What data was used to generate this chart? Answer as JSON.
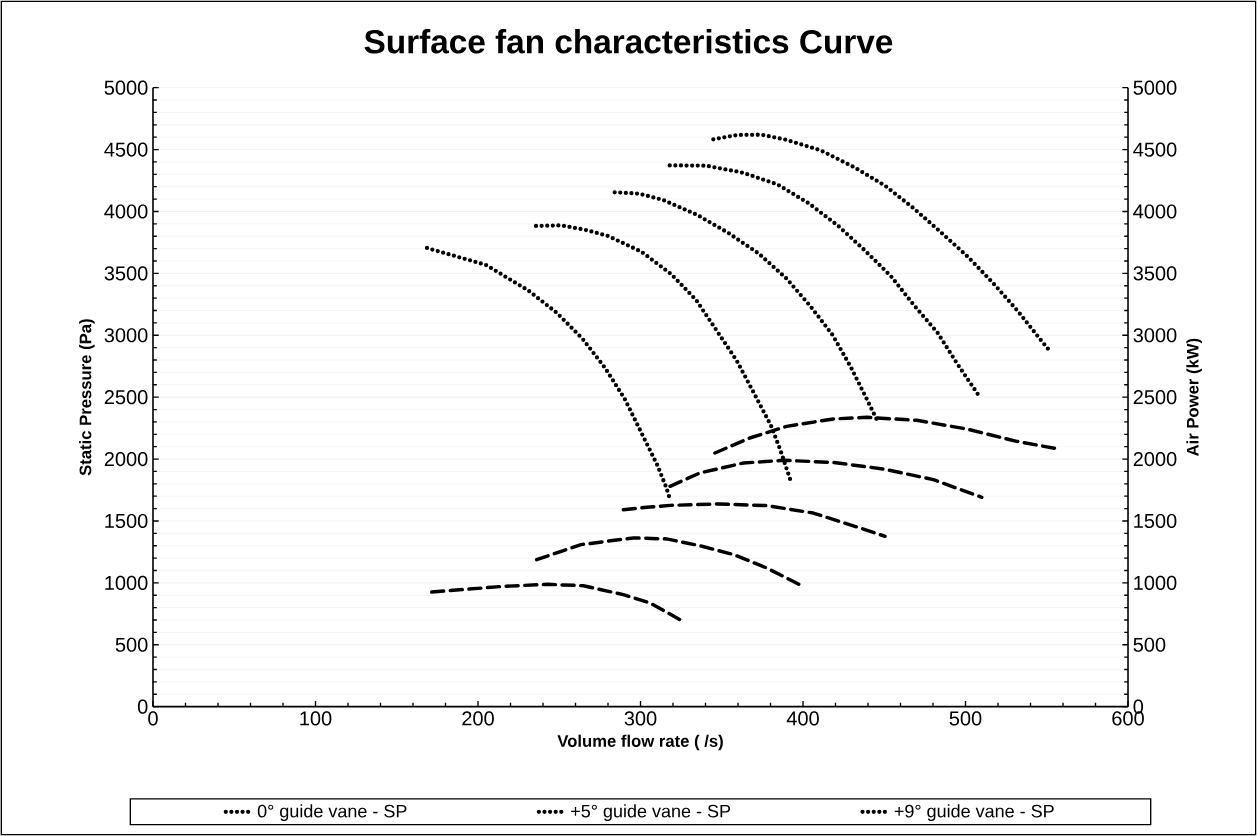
{
  "chart_data": {
    "type": "line",
    "title": "Surface fan characteristics Curve",
    "xlabel": "Volume flow rate (      /s)",
    "ylabel": "Static Pressure (Pa)",
    "y2label": "Air Power (kW)",
    "xlim": [
      0,
      600
    ],
    "xticks": [
      0,
      100,
      200,
      300,
      400,
      500,
      600
    ],
    "ylim": [
      0,
      5000
    ],
    "yticks": [
      0,
      500,
      1000,
      1500,
      2000,
      2500,
      3000,
      3500,
      4000,
      4500,
      5000
    ],
    "y2lim": [
      0,
      5000
    ],
    "y2ticks": [
      0,
      500,
      1000,
      1500,
      2000,
      2500,
      3000,
      3500,
      4000,
      4500,
      5000
    ],
    "grid": "y",
    "legend": "bottom",
    "series": [
      {
        "name": "0° guide vane - SP",
        "color": "#000000",
        "line_style": "dotted",
        "x": [
          168.6,
          204.9,
          230.8,
          248.6,
          264.4,
          278.2,
          290.3,
          300.3,
          310.3,
          315.9,
          318.2
        ],
        "values": [
          3705,
          3568,
          3363,
          3180,
          2970,
          2736,
          2485,
          2219,
          1952,
          1769,
          1672
        ]
      },
      {
        "name": "+5° guide vane - SP",
        "color": "#000000",
        "line_style": "dotted",
        "x": [
          235.7,
          250.9,
          265.6,
          280,
          300.5,
          318.8,
          334.2,
          346.9,
          359.2,
          370,
          380.3,
          385.8,
          393
        ],
        "values": [
          3883,
          3888,
          3853,
          3802,
          3675,
          3495,
          3285,
          3037,
          2795,
          2528,
          2270,
          2082,
          1801
        ]
      },
      {
        "name": "+9° guide vane - SP",
        "color": "#000000",
        "line_style": "dotted",
        "x": [
          284.1,
          299.1,
          313.8,
          334.6,
          354.1,
          372.8,
          389.7,
          404.3,
          418.2,
          429.3,
          439.4,
          445.9
        ],
        "values": [
          4155,
          4144,
          4093,
          3974,
          3826,
          3659,
          3460,
          3239,
          3002,
          2746,
          2480,
          2305
        ]
      },
      {
        "color": "#000000",
        "line_style": "dotted",
        "x": [
          318,
          340.2,
          363,
          384.2,
          403.5,
          421.5,
          438.2,
          454.2,
          468.3,
          482.9,
          495,
          507.5
        ],
        "values": [
          4372,
          4370,
          4313,
          4219,
          4066,
          3885,
          3683,
          3476,
          3242,
          3018,
          2768,
          2526
        ]
      },
      {
        "color": "#000000",
        "line_style": "dotted",
        "x": [
          344.8,
          359.6,
          374.6,
          389.3,
          410.9,
          431.2,
          450.5,
          468.1,
          485.1,
          501.5,
          517.3,
          532.3,
          546.3,
          551.2
        ],
        "values": [
          4583,
          4618,
          4620,
          4580,
          4494,
          4359,
          4208,
          4025,
          3829,
          3633,
          3417,
          3193,
          2962,
          2884
        ]
      },
      {
        "color": "#000000",
        "line_style": "dashed",
        "axis": "y2",
        "x": [
          171.5,
          215.6,
          243.1,
          264.8,
          289.4,
          305.8,
          326
        ],
        "values": [
          926,
          972,
          988,
          977,
          905,
          838,
          690
        ]
      },
      {
        "color": "#000000",
        "line_style": "dashed",
        "axis": "y2",
        "x": [
          236.1,
          263.4,
          295.6,
          316,
          336.6,
          357.4,
          377.6,
          398
        ],
        "values": [
          1187,
          1309,
          1363,
          1355,
          1300,
          1228,
          1120,
          985
        ]
      },
      {
        "color": "#000000",
        "line_style": "dashed",
        "axis": "y2",
        "x": [
          289.4,
          303.8,
          318.2,
          348.2,
          377.6,
          406.3,
          435.1,
          450.5
        ],
        "values": [
          1591,
          1610,
          1626,
          1637,
          1624,
          1564,
          1443,
          1376
        ]
      },
      {
        "color": "#000000",
        "line_style": "dashed",
        "axis": "y2",
        "x": [
          318.2,
          336.6,
          363.3,
          388,
          418.7,
          449.4,
          480.2,
          510
        ],
        "values": [
          1780,
          1888,
          1968,
          1990,
          1973,
          1920,
          1834,
          1691
        ]
      },
      {
        "color": "#000000",
        "line_style": "dashed",
        "axis": "y2",
        "x": [
          345.8,
          367.2,
          389.9,
          418.7,
          439.2,
          470,
          500.7,
          531.5,
          556.1
        ],
        "values": [
          2049,
          2170,
          2264,
          2324,
          2337,
          2313,
          2243,
          2143,
          2084
        ]
      }
    ]
  }
}
